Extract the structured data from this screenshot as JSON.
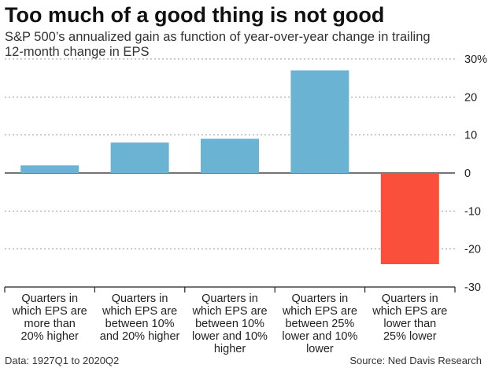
{
  "chart_data": {
    "type": "bar",
    "title": "Too much of a good thing is not good",
    "subtitle": "S&P 500’s annualized gain as function of year-over-year change in trailing 12-month change in EPS",
    "categories": [
      [
        "Quarters in",
        "which EPS are",
        "more than",
        "20% higher"
      ],
      [
        "Quarters in",
        "which EPS are",
        "between 10%",
        "and 20% higher"
      ],
      [
        "Quarters in",
        "which EPS are",
        "between 10%",
        "lower and 10%",
        "higher"
      ],
      [
        "Quarters in",
        "which EPS are",
        "between 25%",
        "lower and 10%",
        "lower"
      ],
      [
        "Quarters in",
        "which EPS are",
        "lower than",
        "25% lower"
      ]
    ],
    "values": [
      2,
      8,
      9,
      27,
      -24
    ],
    "ylim": [
      -30,
      30
    ],
    "yticks": [
      30,
      20,
      10,
      0,
      -10,
      -20,
      -30
    ],
    "ytick_labels": [
      "30%",
      "20",
      "10",
      "0",
      "-10",
      "-20",
      "-30"
    ],
    "grid": true,
    "colors": {
      "positive": "#6ab3d2",
      "negative": "#fa4f3a",
      "grid": "#999999",
      "axis": "#222222"
    },
    "footer_left": "Data: 1927Q1 to 2020Q2",
    "footer_right": "Source: Ned Davis Research"
  }
}
